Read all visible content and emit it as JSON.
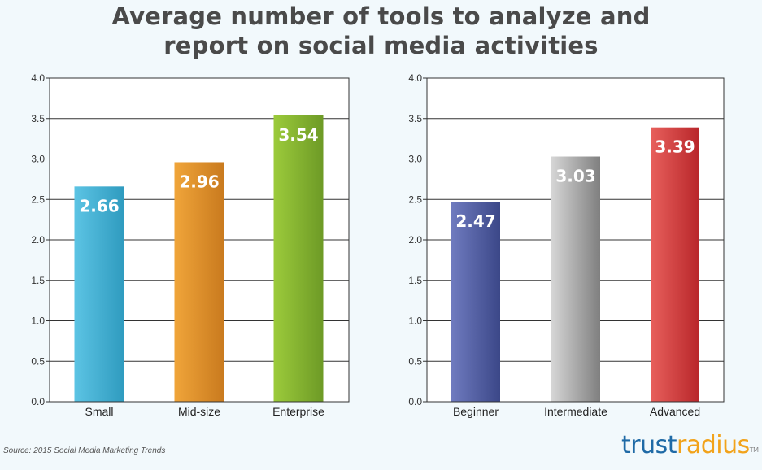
{
  "title_line1": "Average number of tools to analyze and",
  "title_line2": "report on social media activities",
  "source": "Source: 2015 Social Media Marketing Trends",
  "brand": {
    "part1": "trust",
    "part2": "radius",
    "tm": "TM"
  },
  "chart_data": [
    {
      "type": "bar",
      "categories": [
        "Small",
        "Mid-size",
        "Enterprise"
      ],
      "values": [
        2.66,
        2.96,
        3.54
      ],
      "ylim": [
        0,
        4.0
      ],
      "yticks": [
        "0.0",
        "0.5",
        "1.0",
        "1.5",
        "2.0",
        "2.5",
        "3.0",
        "3.5",
        "4.0"
      ],
      "grid": true,
      "colors": [
        [
          "#5cc4e4",
          "#2f9bbf"
        ],
        [
          "#f0a53a",
          "#c97a1e"
        ],
        [
          "#9ccb3b",
          "#6d9a26"
        ]
      ]
    },
    {
      "type": "bar",
      "categories": [
        "Beginner",
        "Intermediate",
        "Advanced"
      ],
      "values": [
        2.47,
        3.03,
        3.39
      ],
      "ylim": [
        0,
        4.0
      ],
      "yticks": [
        "0.0",
        "0.5",
        "1.0",
        "1.5",
        "2.0",
        "2.5",
        "3.0",
        "3.5",
        "4.0"
      ],
      "grid": true,
      "colors": [
        [
          "#6f7bbf",
          "#3b4788"
        ],
        [
          "#d6d6d6",
          "#7f7f7f"
        ],
        [
          "#e8605c",
          "#b8262a"
        ]
      ]
    }
  ]
}
